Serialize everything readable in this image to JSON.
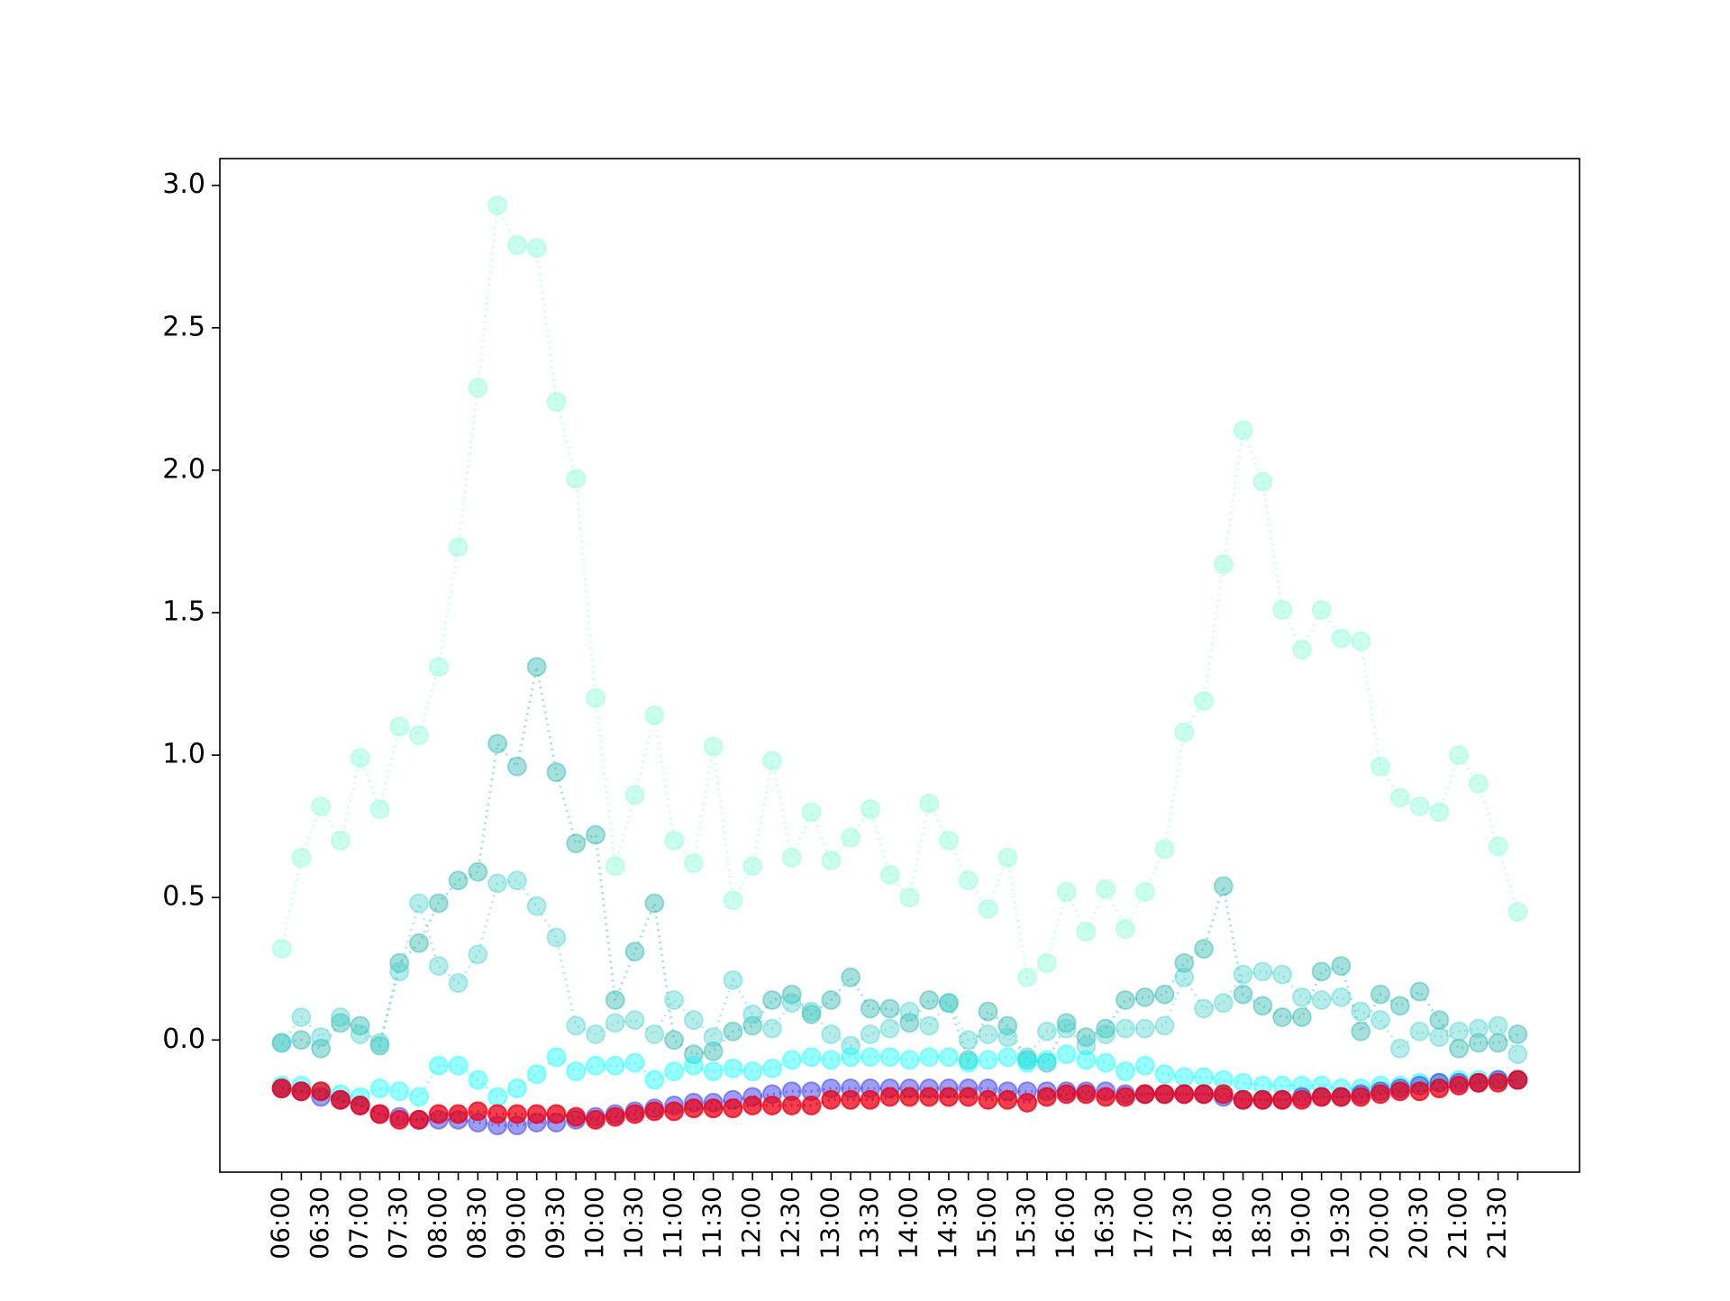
{
  "chart_data": {
    "type": "line",
    "categories": [
      "06:00",
      null,
      "06:30",
      null,
      "07:00",
      null,
      "07:30",
      null,
      "08:00",
      null,
      "08:30",
      null,
      "09:00",
      null,
      "09:30",
      null,
      "10:00",
      null,
      "10:30",
      null,
      "11:00",
      null,
      "11:30",
      null,
      "12:00",
      null,
      "12:30",
      null,
      "13:00",
      null,
      "13:30",
      null,
      "14:00",
      null,
      "14:30",
      null,
      "15:00",
      null,
      "15:30",
      null,
      "16:00",
      null,
      "16:30",
      null,
      "17:00",
      null,
      "17:30",
      null,
      "18:00",
      null,
      "18:30",
      null,
      "19:00",
      null,
      "19:30",
      null,
      "20:00",
      null,
      "20:30",
      null,
      "21:00",
      null,
      "21:30",
      null
    ],
    "ylim": [
      -0.464,
      3.094
    ],
    "yticks": [
      {
        "value": 0,
        "label": "0.0"
      },
      0.5,
      {
        "value": 1,
        "label": "1.0"
      },
      1.5,
      {
        "value": 2,
        "label": "2.0"
      },
      2.5,
      {
        "value": 3,
        "label": "3.0"
      }
    ],
    "series": [
      {
        "color": "rgba(127,255,212,0.4)",
        "values": [
          0.32,
          0.64,
          0.82,
          0.7,
          0.99,
          0.81,
          1.1,
          1.07,
          1.31,
          1.73,
          2.29,
          2.93,
          2.79,
          2.78,
          2.24,
          1.97,
          1.2,
          0.61,
          0.86,
          1.14,
          0.7,
          0.62,
          1.03,
          0.49,
          0.61,
          0.98,
          0.64,
          0.8,
          0.63,
          0.71,
          0.81,
          0.58,
          0.5,
          0.83,
          0.7,
          0.56,
          0.46,
          0.64,
          0.22,
          0.27,
          0.52,
          0.38,
          0.53,
          0.39,
          0.52,
          0.67,
          1.08,
          1.19,
          1.67,
          2.14,
          1.96,
          1.51,
          1.37,
          1.51,
          1.41,
          1.4,
          0.96,
          0.85,
          0.82,
          0.8,
          1.0,
          0.9,
          0.68,
          0.45
        ]
      },
      {
        "color": "rgba(32,178,170,0.4)",
        "values": [
          -0.01,
          0.0,
          -0.03,
          0.06,
          0.05,
          -0.02,
          0.27,
          0.34,
          0.48,
          0.56,
          0.59,
          1.04,
          0.96,
          1.31,
          0.94,
          0.69,
          0.72,
          0.14,
          0.31,
          0.48,
          0.0,
          -0.05,
          -0.04,
          0.03,
          0.05,
          0.14,
          0.16,
          0.09,
          0.14,
          0.22,
          0.11,
          0.11,
          0.06,
          0.14,
          0.13,
          -0.07,
          0.1,
          0.05,
          -0.07,
          -0.08,
          0.06,
          0.01,
          0.04,
          0.14,
          0.15,
          0.16,
          0.27,
          0.32,
          0.54,
          0.16,
          0.12,
          0.08,
          0.08,
          0.24,
          0.26,
          0.03,
          0.16,
          0.12,
          0.17,
          0.07,
          -0.03,
          -0.01,
          -0.01,
          0.02
        ]
      },
      {
        "color": "rgba(72,209,204,0.4)",
        "values": [
          -0.01,
          0.08,
          0.01,
          0.08,
          0.02,
          -0.01,
          0.24,
          0.48,
          0.26,
          0.2,
          0.3,
          0.55,
          0.56,
          0.47,
          0.36,
          0.05,
          0.02,
          0.06,
          0.07,
          0.02,
          0.14,
          0.07,
          0.01,
          0.21,
          0.09,
          0.04,
          0.13,
          0.1,
          0.02,
          -0.02,
          0.02,
          0.04,
          0.1,
          0.05,
          0.13,
          0.0,
          0.02,
          0.01,
          -0.06,
          0.03,
          0.04,
          -0.02,
          0.02,
          0.04,
          0.04,
          0.05,
          0.22,
          0.11,
          0.13,
          0.23,
          0.24,
          0.23,
          0.15,
          0.14,
          0.15,
          0.1,
          0.07,
          -0.03,
          0.03,
          0.01,
          0.03,
          0.04,
          0.05,
          -0.05
        ]
      },
      {
        "color": "rgba(0,255,255,0.4)",
        "values": [
          -0.16,
          -0.16,
          -0.18,
          -0.19,
          -0.2,
          -0.17,
          -0.18,
          -0.2,
          -0.09,
          -0.09,
          -0.14,
          -0.2,
          -0.17,
          -0.12,
          -0.06,
          -0.11,
          -0.09,
          -0.09,
          -0.08,
          -0.14,
          -0.11,
          -0.09,
          -0.11,
          -0.1,
          -0.11,
          -0.1,
          -0.07,
          -0.06,
          -0.07,
          -0.06,
          -0.06,
          -0.06,
          -0.07,
          -0.06,
          -0.06,
          -0.08,
          -0.07,
          -0.06,
          -0.08,
          -0.07,
          -0.05,
          -0.07,
          -0.08,
          -0.11,
          -0.09,
          -0.12,
          -0.13,
          -0.13,
          -0.14,
          -0.15,
          -0.16,
          -0.16,
          -0.16,
          -0.16,
          -0.17,
          -0.17,
          -0.16,
          -0.16,
          -0.15,
          -0.15,
          -0.14,
          -0.14,
          -0.14,
          -0.14
        ]
      },
      {
        "color": "rgba(40,40,230,0.45)",
        "values": [
          -0.17,
          -0.18,
          -0.2,
          -0.21,
          -0.23,
          -0.26,
          -0.27,
          -0.28,
          -0.28,
          -0.28,
          -0.29,
          -0.3,
          -0.3,
          -0.29,
          -0.29,
          -0.28,
          -0.27,
          -0.26,
          -0.25,
          -0.24,
          -0.23,
          -0.22,
          -0.22,
          -0.21,
          -0.2,
          -0.19,
          -0.18,
          -0.18,
          -0.17,
          -0.17,
          -0.17,
          -0.17,
          -0.17,
          -0.17,
          -0.17,
          -0.17,
          -0.17,
          -0.18,
          -0.18,
          -0.18,
          -0.18,
          -0.18,
          -0.18,
          -0.19,
          -0.19,
          -0.19,
          -0.19,
          -0.19,
          -0.2,
          -0.21,
          -0.21,
          -0.21,
          -0.2,
          -0.2,
          -0.2,
          -0.19,
          -0.18,
          -0.17,
          -0.16,
          -0.15,
          -0.15,
          -0.15,
          -0.14,
          -0.14
        ]
      },
      {
        "color": "rgba(235,0,20,0.75)",
        "values": [
          -0.17,
          -0.18,
          -0.18,
          -0.21,
          -0.23,
          -0.26,
          -0.28,
          -0.28,
          -0.26,
          -0.26,
          -0.25,
          -0.26,
          -0.26,
          -0.26,
          -0.26,
          -0.27,
          -0.28,
          -0.27,
          -0.26,
          -0.25,
          -0.25,
          -0.24,
          -0.24,
          -0.24,
          -0.23,
          -0.23,
          -0.23,
          -0.23,
          -0.21,
          -0.21,
          -0.21,
          -0.2,
          -0.2,
          -0.2,
          -0.2,
          -0.2,
          -0.21,
          -0.21,
          -0.22,
          -0.2,
          -0.19,
          -0.19,
          -0.2,
          -0.2,
          -0.19,
          -0.19,
          -0.19,
          -0.19,
          -0.19,
          -0.21,
          -0.21,
          -0.21,
          -0.21,
          -0.2,
          -0.2,
          -0.2,
          -0.19,
          -0.18,
          -0.18,
          -0.17,
          -0.16,
          -0.15,
          -0.15,
          -0.14
        ]
      }
    ]
  }
}
